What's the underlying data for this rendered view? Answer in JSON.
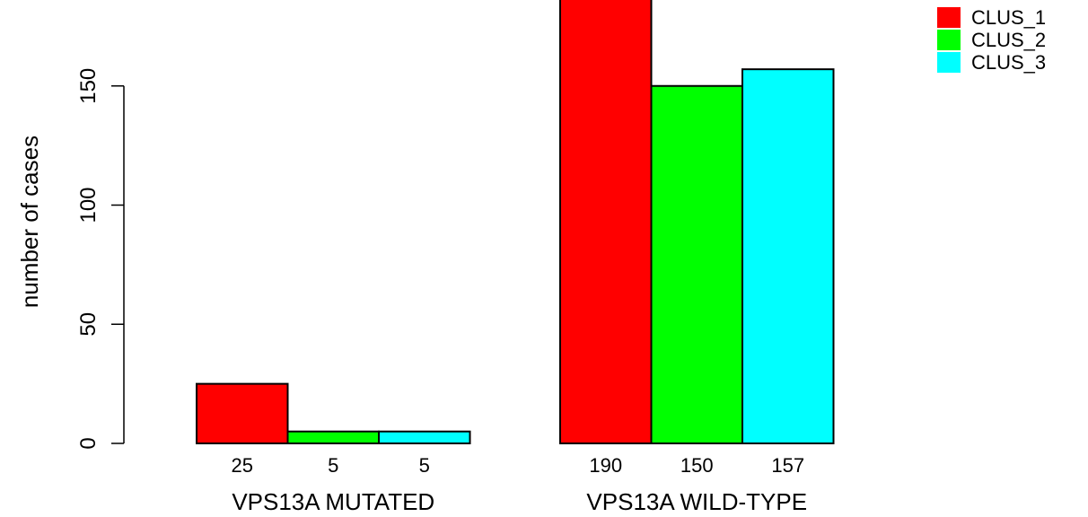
{
  "chart_data": {
    "type": "bar",
    "title": "",
    "xlabel": "",
    "ylabel": "number of cases",
    "ylim": [
      0,
      190
    ],
    "yticks": [
      0,
      50,
      100,
      150
    ],
    "categories": [
      "VPS13A MUTATED",
      "VPS13A WILD-TYPE"
    ],
    "series": [
      {
        "name": "CLUS_1",
        "color": "#ff0000",
        "values": [
          25,
          190
        ]
      },
      {
        "name": "CLUS_2",
        "color": "#00ff00",
        "values": [
          5,
          150
        ]
      },
      {
        "name": "CLUS_3",
        "color": "#00ffff",
        "values": [
          5,
          157
        ]
      }
    ],
    "bar_labels": [
      [
        "25",
        "5",
        "5"
      ],
      [
        "190",
        "150",
        "157"
      ]
    ],
    "legend_position": "top-right",
    "grid": false
  }
}
